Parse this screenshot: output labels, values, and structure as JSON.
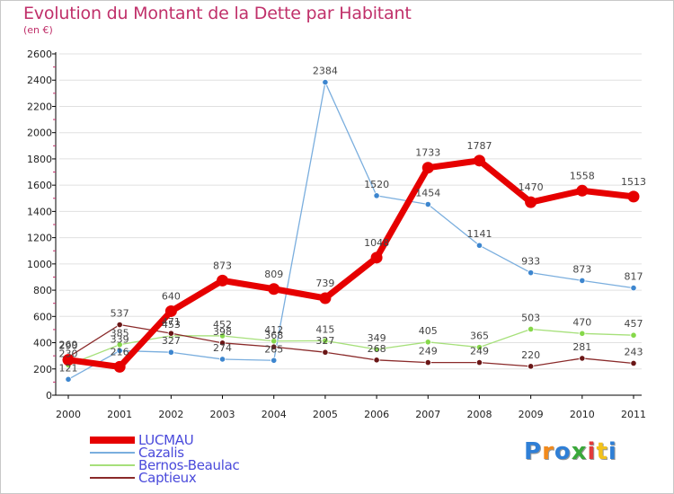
{
  "title": "Evolution du Montant de la Dette par Habitant",
  "subtitle": "(en €)",
  "colors": {
    "title": "#c0306a",
    "legend_text": "#4a4adb",
    "axis": "#000000",
    "grid": "#e0e0e0",
    "label": "#444444"
  },
  "logo": {
    "letters": [
      "P",
      "r",
      "o",
      "x",
      "i",
      "t",
      "i"
    ],
    "colors": [
      "#2f7fd6",
      "#f28a1c",
      "#2f7fd6",
      "#3aa83a",
      "#e23a3a",
      "#f2c21c",
      "#2f7fd6"
    ]
  },
  "chart_data": {
    "type": "line",
    "title": "Evolution du Montant de la Dette par Habitant",
    "subtitle": "(en €)",
    "xlabel": "",
    "ylabel": "",
    "ylim": [
      0,
      2600
    ],
    "yticks": [
      0,
      200,
      400,
      600,
      800,
      1000,
      1200,
      1400,
      1600,
      1800,
      2000,
      2200,
      2400,
      2600
    ],
    "grid": true,
    "legend_position": "bottom-left",
    "x": [
      "2000",
      "2001",
      "2002",
      "2003",
      "2004",
      "2005",
      "2006",
      "2007",
      "2008",
      "2009",
      "2010",
      "2011"
    ],
    "series": [
      {
        "name": "LUCMAU",
        "color": "#e60000",
        "marker_color": "#e60000",
        "width": 7,
        "values": [
          269,
          216,
          640,
          873,
          809,
          739,
          1048,
          1733,
          1787,
          1470,
          1558,
          1513
        ],
        "labels": [
          "269",
          "216",
          "640",
          "873",
          "809",
          "739",
          "1048",
          "1733",
          "1787",
          "1470",
          "1558",
          "1513"
        ]
      },
      {
        "name": "Cazalis",
        "color": "#7aaede",
        "marker_color": "#3d86cf",
        "width": 1.3,
        "values": [
          121,
          339,
          327,
          274,
          265,
          2384,
          1520,
          1454,
          1141,
          933,
          873,
          817
        ],
        "labels": [
          "121",
          "339",
          "327",
          "274",
          "265",
          "2384",
          "1520",
          "1454",
          "1141",
          "933",
          "873",
          "817"
        ]
      },
      {
        "name": "Bernos-Beaulac",
        "color": "#a6e07a",
        "marker_color": "#86d84a",
        "width": 1.3,
        "values": [
          230,
          385,
          453,
          452,
          412,
          415,
          349,
          405,
          365,
          503,
          470,
          457
        ],
        "labels": [
          "230",
          "385",
          "453",
          "452",
          "412",
          "415",
          "349",
          "405",
          "365",
          "503",
          "470",
          "457"
        ]
      },
      {
        "name": "Captieux",
        "color": "#8a2a2a",
        "marker_color": "#6a1616",
        "width": 1.3,
        "values": [
          290,
          537,
          471,
          398,
          368,
          327,
          268,
          249,
          249,
          220,
          281,
          243
        ],
        "labels": [
          "290",
          "537",
          "471",
          "398",
          "368",
          "327",
          "268",
          "249",
          "249",
          "220",
          "281",
          "243"
        ]
      }
    ]
  }
}
